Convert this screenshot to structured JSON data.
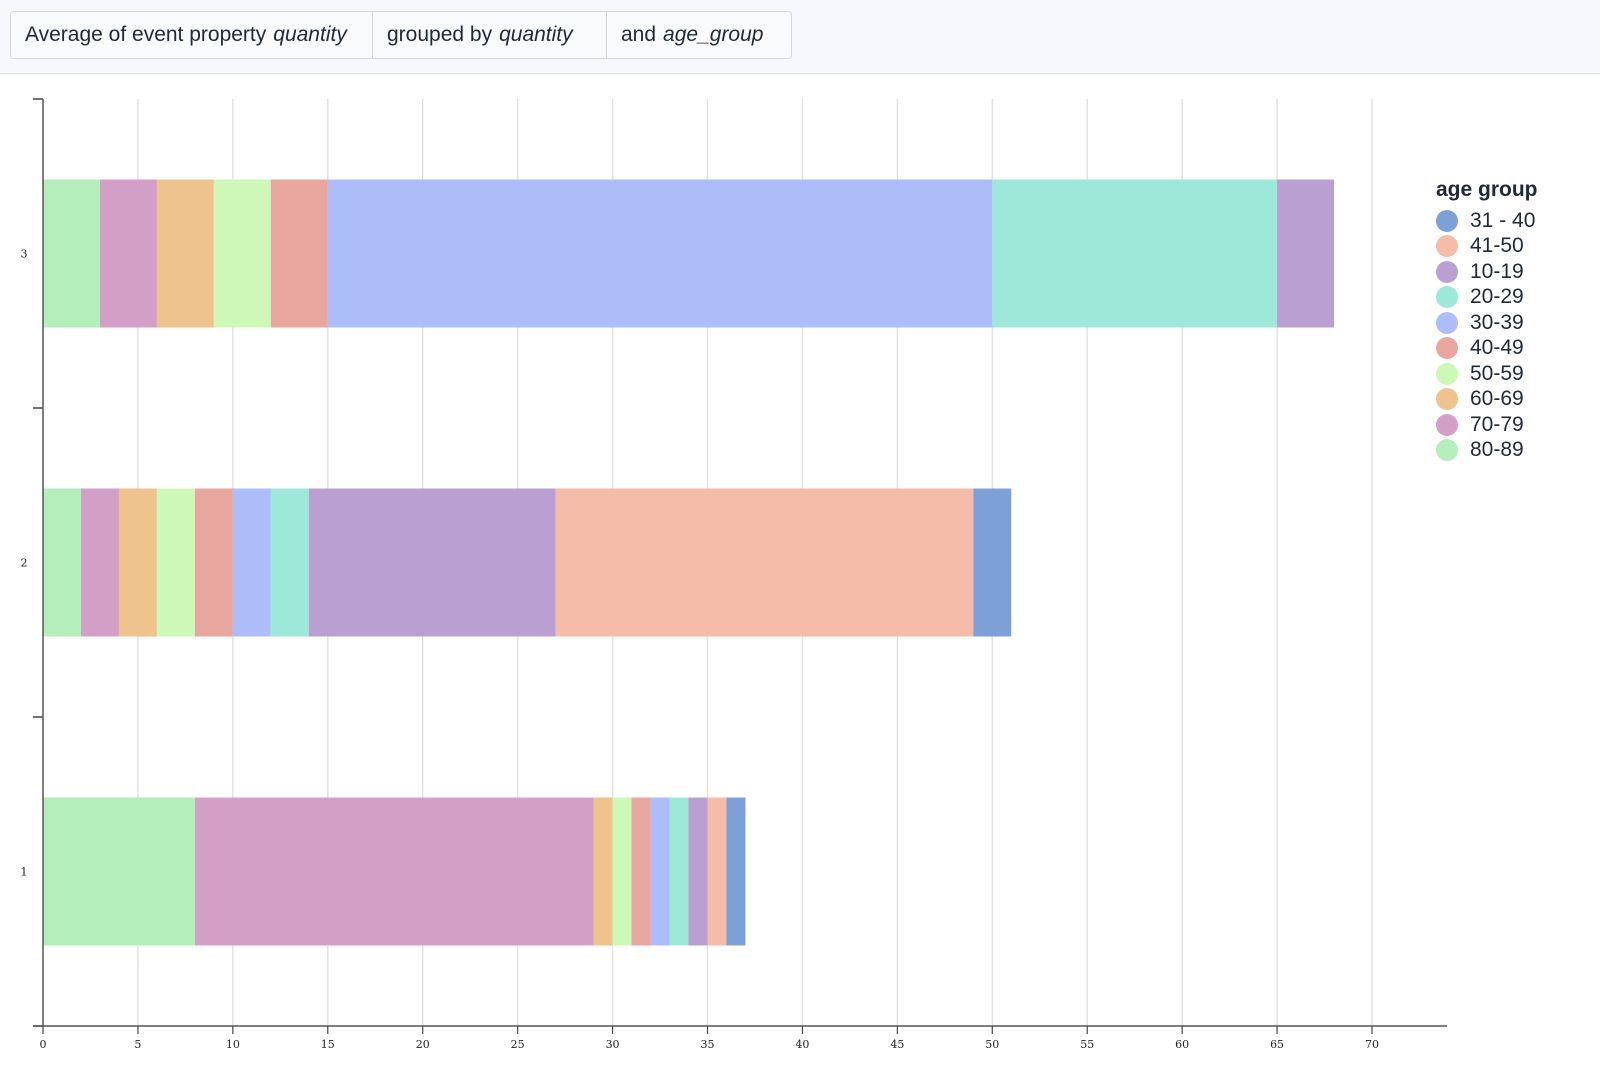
{
  "query": {
    "segment1_prefix": "Average of event property",
    "segment1_var": "quantity",
    "segment2_prefix": "grouped by",
    "segment2_var": "quantity",
    "segment3_prefix": "and",
    "segment3_var": "age_group"
  },
  "chart_data": {
    "type": "bar",
    "orientation": "horizontal",
    "stacked": true,
    "title": "",
    "xlabel": "",
    "ylabel": "",
    "xlim": [
      0,
      74
    ],
    "x_ticks": [
      0,
      5,
      10,
      15,
      20,
      25,
      30,
      35,
      40,
      45,
      50,
      55,
      60,
      65,
      70
    ],
    "categories": [
      "1",
      "2",
      "3"
    ],
    "grid": "vertical",
    "legend_title": "age group",
    "legend_placement": "right",
    "series": [
      {
        "name": "80-89",
        "color": "#b3eebb",
        "values": [
          8,
          2,
          3
        ]
      },
      {
        "name": "70-79",
        "color": "#d49fc7",
        "values": [
          21,
          2,
          3
        ]
      },
      {
        "name": "60-69",
        "color": "#eec38d",
        "values": [
          1,
          2,
          3
        ]
      },
      {
        "name": "50-59",
        "color": "#cef8b8",
        "values": [
          1,
          2,
          3
        ]
      },
      {
        "name": "40-49",
        "color": "#e8a69e",
        "values": [
          1,
          2,
          3
        ]
      },
      {
        "name": "30-39",
        "color": "#adbdfa",
        "values": [
          1,
          2,
          35
        ]
      },
      {
        "name": "20-29",
        "color": "#9de8d8",
        "values": [
          1,
          2,
          15
        ]
      },
      {
        "name": "10-19",
        "color": "#b99fd2",
        "values": [
          1,
          13,
          3
        ]
      },
      {
        "name": "41-50",
        "color": "#f5bca9",
        "values": [
          1,
          22,
          0
        ]
      },
      {
        "name": "31 - 40",
        "color": "#7ea0d8",
        "values": [
          1,
          2,
          0
        ]
      }
    ],
    "legend_order": [
      "31 - 40",
      "41-50",
      "10-19",
      "20-29",
      "30-39",
      "40-49",
      "50-59",
      "60-69",
      "70-79",
      "80-89"
    ]
  }
}
